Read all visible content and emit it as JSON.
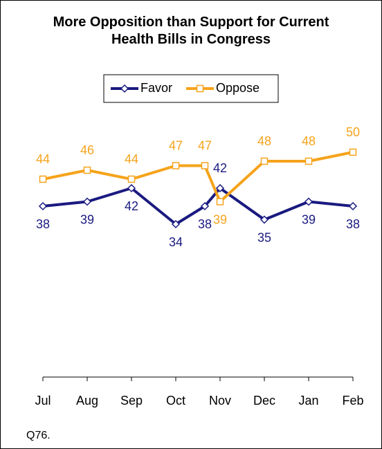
{
  "chart_data": {
    "type": "line",
    "title": "More Opposition than Support for Current Health Bills in Congress",
    "categories": [
      "Jul",
      "Aug",
      "Sep",
      "Oct",
      null,
      "Nov",
      "Dec",
      "Jan",
      "Feb"
    ],
    "series": [
      {
        "name": "Favor",
        "color": "#1a1a80",
        "marker": "diamond",
        "values": [
          38,
          39,
          42,
          34,
          38,
          42,
          35,
          39,
          38
        ]
      },
      {
        "name": "Oppose",
        "color": "#f5a31b",
        "marker": "square",
        "values": [
          44,
          46,
          44,
          47,
          47,
          39,
          48,
          48,
          50
        ]
      }
    ],
    "ylim": [
      0,
      60
    ],
    "note": "Q76."
  }
}
